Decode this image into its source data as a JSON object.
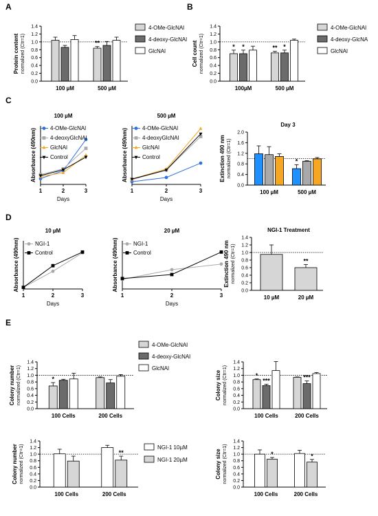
{
  "panel_labels": [
    "A",
    "B",
    "C",
    "D",
    "E"
  ],
  "colors": {
    "light_gray": "#d6d6d6",
    "dark_gray": "#6b6b6b",
    "white": "#ffffff",
    "blue": "#2f6fe0",
    "silver": "#a9a9a9",
    "orange": "#f5a623",
    "black": "#000000",
    "bright_blue": "#1e90ff"
  },
  "chart_data": [
    {
      "type": "bar",
      "panel": "A",
      "ylabel": "Protein content",
      "ysub": "normalized (Ctr=1)",
      "ylim": [
        0,
        1.4
      ],
      "yticks": [
        0.0,
        0.2,
        0.4,
        0.6,
        0.8,
        1.0,
        1.2,
        1.4
      ],
      "ref_line": 1.0,
      "categories": [
        "100 µM",
        "500 µM"
      ],
      "series": [
        {
          "name": "4-OMe-GlcNAl",
          "color_key": "light_gray",
          "values": [
            1.04,
            0.84
          ],
          "errors": [
            0.08,
            0.04
          ],
          "stars": [
            "",
            "**"
          ]
        },
        {
          "name": "4-deoxy-GlcNAl",
          "color_key": "dark_gray",
          "values": [
            0.86,
            0.91
          ],
          "errors": [
            0.05,
            0.1
          ],
          "stars": [
            "",
            ""
          ]
        },
        {
          "name": "GlcNAl",
          "color_key": "white",
          "values": [
            1.06,
            1.04
          ],
          "errors": [
            0.1,
            0.08
          ],
          "stars": [
            "",
            ""
          ]
        }
      ],
      "legend": "right"
    },
    {
      "type": "bar",
      "panel": "B",
      "ylabel": "Cell count",
      "ysub": "normalized (Ctr=1)",
      "ylim": [
        0,
        1.4
      ],
      "yticks": [
        0.0,
        0.2,
        0.4,
        0.6,
        0.8,
        1.0,
        1.2,
        1.4
      ],
      "ref_line": 1.0,
      "categories": [
        "100µM",
        "500 µM"
      ],
      "series": [
        {
          "name": "4-OMe-GlcNAl",
          "color_key": "light_gray",
          "values": [
            0.7,
            0.72
          ],
          "errors": [
            0.09,
            0.04
          ],
          "stars": [
            "*",
            "**"
          ]
        },
        {
          "name": "4-deoxy-GlcNA",
          "color_key": "dark_gray",
          "values": [
            0.7,
            0.72
          ],
          "errors": [
            0.09,
            0.07
          ],
          "stars": [
            "*",
            "*"
          ]
        },
        {
          "name": "GlcNAl",
          "color_key": "white",
          "values": [
            0.79,
            1.04
          ],
          "errors": [
            0.1,
            0.03
          ],
          "stars": [
            "",
            ""
          ]
        }
      ],
      "legend": "right"
    },
    {
      "type": "line",
      "panel": "C-1",
      "title": "100 µM",
      "xlabel": "Days",
      "ylabel": "Absorbance (490nm)",
      "x": [
        1,
        2,
        3
      ],
      "xlim": [
        1,
        3
      ],
      "ylim": [
        0,
        0.6
      ],
      "series": [
        {
          "name": "4-OMe-GlcNAl",
          "color_key": "blue",
          "marker": "circle",
          "values": [
            0.06,
            0.14,
            0.46
          ]
        },
        {
          "name": "4-deoxyGlcNAl",
          "color_key": "silver",
          "marker": "square",
          "values": [
            0.1,
            0.16,
            0.37
          ]
        },
        {
          "name": "GlcNAl",
          "color_key": "orange",
          "marker": "triangle-up",
          "values": [
            0.08,
            0.12,
            0.3
          ]
        },
        {
          "name": "Control",
          "color_key": "black",
          "marker": "triangle-down",
          "values": [
            0.09,
            0.15,
            0.28
          ]
        }
      ],
      "legend": "top-left"
    },
    {
      "type": "line",
      "panel": "C-2",
      "title": "500 µM",
      "xlabel": "Days",
      "ylabel": "Absorbance (490nm)",
      "x": [
        1,
        2,
        3
      ],
      "xlim": [
        1,
        3
      ],
      "ylim": [
        0,
        1.1
      ],
      "series": [
        {
          "name": "4-OMe-GlcNAl",
          "color_key": "blue",
          "marker": "circle",
          "values": [
            0.05,
            0.13,
            0.4
          ]
        },
        {
          "name": "4-deoxyGlcNAl",
          "color_key": "silver",
          "marker": "square",
          "values": [
            0.09,
            0.27,
            0.9
          ]
        },
        {
          "name": "GlcNAl",
          "color_key": "orange",
          "marker": "triangle-up",
          "values": [
            0.1,
            0.29,
            1.05
          ]
        },
        {
          "name": "Control",
          "color_key": "black",
          "marker": "triangle-down",
          "values": [
            0.1,
            0.27,
            0.95
          ]
        }
      ],
      "legend": "top-left"
    },
    {
      "type": "bar",
      "panel": "C-3",
      "title": "Day 3",
      "ylabel": "Extinction 490 nm",
      "ysub": "normalized (Ctr=1)",
      "ylim": [
        0,
        2.0
      ],
      "yticks": [
        0.0,
        0.4,
        0.8,
        1.2,
        1.6,
        2.0
      ],
      "ref_line": 1.0,
      "categories": [
        "100 µM",
        "500 µM"
      ],
      "series": [
        {
          "name": "4-OMe-GlcNAl",
          "color_key": "bright_blue",
          "values": [
            1.18,
            0.62
          ],
          "errors": [
            0.3,
            0.15
          ],
          "stars": [
            "",
            "*"
          ]
        },
        {
          "name": "4-deoxyGlcNAl",
          "color_key": "silver",
          "values": [
            1.15,
            0.9
          ],
          "errors": [
            0.3,
            0.02
          ],
          "stars": [
            "",
            ""
          ]
        },
        {
          "name": "GlcNAl",
          "color_key": "orange",
          "values": [
            1.08,
            0.99
          ],
          "errors": [
            0.1,
            0.05
          ],
          "stars": [
            "",
            ""
          ]
        }
      ]
    },
    {
      "type": "line",
      "panel": "D-1",
      "title": "10 µM",
      "xlabel": "Days",
      "ylabel": "Absorbance (490nm)",
      "x": [
        1,
        2,
        3
      ],
      "xlim": [
        1,
        3
      ],
      "ylim": [
        0,
        0.6
      ],
      "series": [
        {
          "name": "NGI-1",
          "color_key": "silver",
          "marker": "circle",
          "values": [
            0.02,
            0.22,
            0.45
          ]
        },
        {
          "name": "Control",
          "color_key": "black",
          "marker": "square",
          "values": [
            0.02,
            0.29,
            0.46
          ]
        }
      ],
      "legend": "top-left"
    },
    {
      "type": "line",
      "panel": "D-2",
      "title": "20 µM",
      "xlabel": "Days",
      "ylabel": "Absorbance (490nm)",
      "x": [
        1,
        2,
        3
      ],
      "xlim": [
        1,
        3
      ],
      "ylim": [
        0,
        0.6
      ],
      "series": [
        {
          "name": "NGI-1",
          "color_key": "silver",
          "marker": "circle",
          "values": [
            0.12,
            0.24,
            0.31
          ]
        },
        {
          "name": "Control",
          "color_key": "black",
          "marker": "square",
          "values": [
            0.13,
            0.18,
            0.46
          ]
        }
      ],
      "legend": "top-left"
    },
    {
      "type": "bar",
      "panel": "D-3",
      "title": "NGI-1 Treatment",
      "ylabel": "Extinction 490 nm",
      "ysub": "normalized (Ctr=1)",
      "ylim": [
        0,
        1.4
      ],
      "yticks": [
        0.0,
        0.2,
        0.4,
        0.6,
        0.8,
        1.0,
        1.2,
        1.4
      ],
      "ref_line": 1.0,
      "categories": [
        "10 µM",
        "20 µM"
      ],
      "series": [
        {
          "name": "NGI-1",
          "color_key": "light_gray",
          "values": [
            0.95,
            0.6
          ],
          "errors": [
            0.25,
            0.08
          ],
          "stars": [
            "",
            "**"
          ]
        }
      ]
    },
    {
      "type": "bar",
      "panel": "E-1",
      "ylabel": "Colony number",
      "ysub": "normalized (Ctr=1)",
      "ylim": [
        0,
        1.4
      ],
      "yticks": [
        0.0,
        0.2,
        0.4,
        0.6,
        0.8,
        1.0,
        1.2,
        1.4
      ],
      "ref_line": 1.0,
      "categories": [
        "100 Cells",
        "200 Cells"
      ],
      "series": [
        {
          "name": "4-OMe-GlcNAl",
          "color_key": "light_gray",
          "values": [
            0.68,
            0.93
          ],
          "errors": [
            0.1,
            0.02
          ],
          "stars": [
            "*",
            ""
          ]
        },
        {
          "name": "4-deoxy-GlcNAl",
          "color_key": "dark_gray",
          "values": [
            0.85,
            0.77
          ],
          "errors": [
            0.03,
            0.1
          ],
          "stars": [
            "",
            ""
          ]
        },
        {
          "name": "GlcNAl",
          "color_key": "white",
          "values": [
            0.89,
            0.97
          ],
          "errors": [
            0.17,
            0.05
          ],
          "stars": [
            "",
            ""
          ]
        }
      ],
      "legend": "right"
    },
    {
      "type": "bar",
      "panel": "E-2",
      "ylabel": "Colony size",
      "ysub": "normalized (Ctr=1)",
      "ylim": [
        0,
        1.4
      ],
      "yticks": [
        0.0,
        0.2,
        0.4,
        0.6,
        0.8,
        1.0,
        1.2,
        1.4
      ],
      "ref_line": 1.0,
      "categories": [
        "100 Cells",
        "200 Cells"
      ],
      "series": [
        {
          "name": "4-OMe-GlcNAl",
          "color_key": "light_gray",
          "values": [
            0.87,
            0.94
          ],
          "errors": [
            0.02,
            0.01
          ],
          "stars": [
            "*",
            ""
          ]
        },
        {
          "name": "4-deoxy-GlcNAl",
          "color_key": "dark_gray",
          "values": [
            0.69,
            0.75
          ],
          "errors": [
            0.04,
            0.08
          ],
          "stars": [
            "***",
            "***"
          ]
        },
        {
          "name": "GlcNAl",
          "color_key": "white",
          "values": [
            1.14,
            1.05
          ],
          "errors": [
            0.27,
            0.03
          ],
          "stars": [
            "",
            ""
          ]
        }
      ]
    },
    {
      "type": "bar",
      "panel": "E-3",
      "ylabel": "Colony number",
      "ysub": "normalized (Ctr=1)",
      "ylim": [
        0,
        1.4
      ],
      "yticks": [
        0.0,
        0.2,
        0.4,
        0.6,
        0.8,
        1.0,
        1.2,
        1.4
      ],
      "ref_line": 1.0,
      "categories": [
        "100 Cells",
        "200 Cells"
      ],
      "series": [
        {
          "name": "NGI-1 10µM",
          "color_key": "white",
          "values": [
            1.01,
            1.2
          ],
          "errors": [
            0.14,
            0.07
          ],
          "stars": [
            "",
            ""
          ]
        },
        {
          "name": "NGI-1 20µM",
          "color_key": "light_gray",
          "values": [
            0.79,
            0.82
          ],
          "errors": [
            0.15,
            0.12
          ],
          "stars": [
            "",
            "**"
          ]
        }
      ],
      "legend": "right"
    },
    {
      "type": "bar",
      "panel": "E-4",
      "ylabel": "Colony size",
      "ysub": "normalized (Ctr=1)",
      "ylim": [
        0,
        1.4
      ],
      "yticks": [
        0.0,
        0.2,
        0.4,
        0.6,
        0.8,
        1.0,
        1.2,
        1.4
      ],
      "ref_line": 1.0,
      "categories": [
        "100 Cells",
        "200 Cells"
      ],
      "series": [
        {
          "name": "NGI-1 10µM",
          "color_key": "white",
          "values": [
            1.0,
            1.02
          ],
          "errors": [
            0.13,
            0.1
          ],
          "stars": [
            "",
            ""
          ]
        },
        {
          "name": "NGI-1 20µM",
          "color_key": "light_gray",
          "values": [
            0.85,
            0.76
          ],
          "errors": [
            0.05,
            0.08
          ],
          "stars": [
            "*",
            "*"
          ]
        }
      ]
    }
  ]
}
